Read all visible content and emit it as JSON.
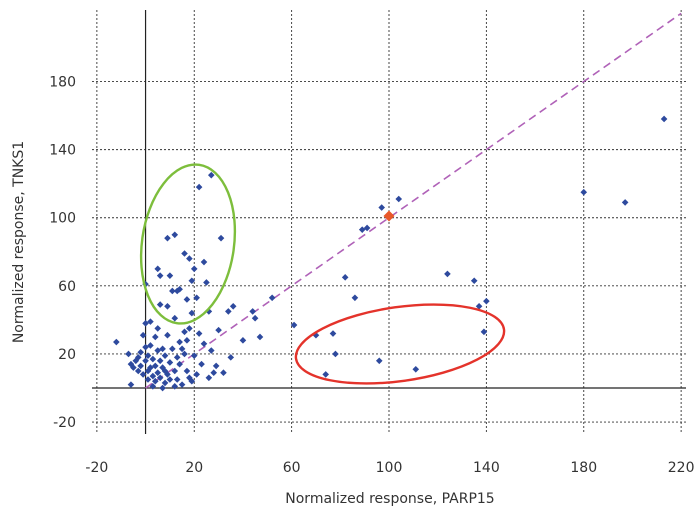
{
  "chart_data": {
    "type": "scatter",
    "xlabel": "Normalized response, PARP15",
    "ylabel": "Normalized response, TNKS1",
    "xlim": [
      -22,
      222
    ],
    "ylim": [
      -27,
      222
    ],
    "x_ticks": [
      -20,
      20,
      60,
      100,
      140,
      180,
      220
    ],
    "y_ticks": [
      -20,
      20,
      60,
      100,
      140,
      180
    ],
    "grid": "dashed",
    "colors": {
      "points": "#2e4a9e",
      "reference_point": "#e8582a",
      "diagonal": "#b062b8",
      "green_ellipse": "#7dbe3c",
      "red_ellipse": "#e4332b"
    },
    "reference_point": {
      "x": 100,
      "y": 101
    },
    "diagonal_line": {
      "x": [
        0,
        220
      ],
      "y": [
        0,
        220
      ]
    },
    "series": [
      {
        "values": [
          [
            -12,
            27
          ],
          [
            -7,
            20
          ],
          [
            -6,
            2
          ],
          [
            -6,
            14
          ],
          [
            -5,
            12
          ],
          [
            -4,
            16
          ],
          [
            -3,
            10
          ],
          [
            -3,
            18
          ],
          [
            -2,
            21
          ],
          [
            -2,
            13
          ],
          [
            -1,
            8
          ],
          [
            -1,
            31
          ],
          [
            0,
            38
          ],
          [
            0,
            61
          ],
          [
            0,
            24
          ],
          [
            0,
            16
          ],
          [
            1,
            19
          ],
          [
            1,
            10
          ],
          [
            1,
            5
          ],
          [
            2,
            12
          ],
          [
            2,
            25
          ],
          [
            2,
            39
          ],
          [
            3,
            1
          ],
          [
            3,
            7
          ],
          [
            3,
            17
          ],
          [
            4,
            4
          ],
          [
            4,
            13
          ],
          [
            4,
            30
          ],
          [
            5,
            22
          ],
          [
            5,
            9
          ],
          [
            5,
            35
          ],
          [
            5,
            70
          ],
          [
            6,
            49
          ],
          [
            6,
            66
          ],
          [
            6,
            16
          ],
          [
            6,
            6
          ],
          [
            7,
            0
          ],
          [
            7,
            23
          ],
          [
            7,
            12
          ],
          [
            8,
            3
          ],
          [
            8,
            19
          ],
          [
            8,
            10
          ],
          [
            9,
            8
          ],
          [
            9,
            48
          ],
          [
            9,
            31
          ],
          [
            9,
            88
          ],
          [
            10,
            66
          ],
          [
            10,
            15
          ],
          [
            10,
            5
          ],
          [
            11,
            57
          ],
          [
            11,
            23
          ],
          [
            12,
            1
          ],
          [
            12,
            10
          ],
          [
            12,
            41
          ],
          [
            12,
            90
          ],
          [
            13,
            5
          ],
          [
            13,
            18
          ],
          [
            13,
            57
          ],
          [
            14,
            58
          ],
          [
            14,
            27
          ],
          [
            14,
            14
          ],
          [
            15,
            2
          ],
          [
            15,
            23
          ],
          [
            16,
            20
          ],
          [
            16,
            33
          ],
          [
            16,
            79
          ],
          [
            17,
            28
          ],
          [
            17,
            10
          ],
          [
            17,
            52
          ],
          [
            18,
            6
          ],
          [
            18,
            76
          ],
          [
            18,
            35
          ],
          [
            19,
            44
          ],
          [
            19,
            63
          ],
          [
            19,
            4
          ],
          [
            20,
            70
          ],
          [
            20,
            19
          ],
          [
            21,
            53
          ],
          [
            21,
            8
          ],
          [
            22,
            118
          ],
          [
            22,
            32
          ],
          [
            23,
            14
          ],
          [
            24,
            26
          ],
          [
            24,
            74
          ],
          [
            25,
            62
          ],
          [
            26,
            6
          ],
          [
            26,
            45
          ],
          [
            27,
            125
          ],
          [
            27,
            22
          ],
          [
            28,
            9
          ],
          [
            29,
            13
          ],
          [
            30,
            34
          ],
          [
            31,
            88
          ],
          [
            32,
            9
          ],
          [
            34,
            45
          ],
          [
            35,
            18
          ],
          [
            36,
            48
          ],
          [
            40,
            28
          ],
          [
            44,
            45
          ],
          [
            45,
            41
          ],
          [
            47,
            30
          ],
          [
            52,
            53
          ],
          [
            61,
            37
          ],
          [
            70,
            31
          ],
          [
            74,
            8
          ],
          [
            77,
            32
          ],
          [
            78,
            20
          ],
          [
            82,
            65
          ],
          [
            86,
            53
          ],
          [
            89,
            93
          ],
          [
            91,
            94
          ],
          [
            96,
            16
          ],
          [
            97,
            106
          ],
          [
            104,
            111
          ],
          [
            111,
            11
          ],
          [
            124,
            67
          ],
          [
            135,
            63
          ],
          [
            137,
            48
          ],
          [
            139,
            33
          ],
          [
            140,
            51
          ],
          [
            180,
            115
          ],
          [
            197,
            109
          ],
          [
            213,
            158
          ]
        ]
      }
    ]
  }
}
